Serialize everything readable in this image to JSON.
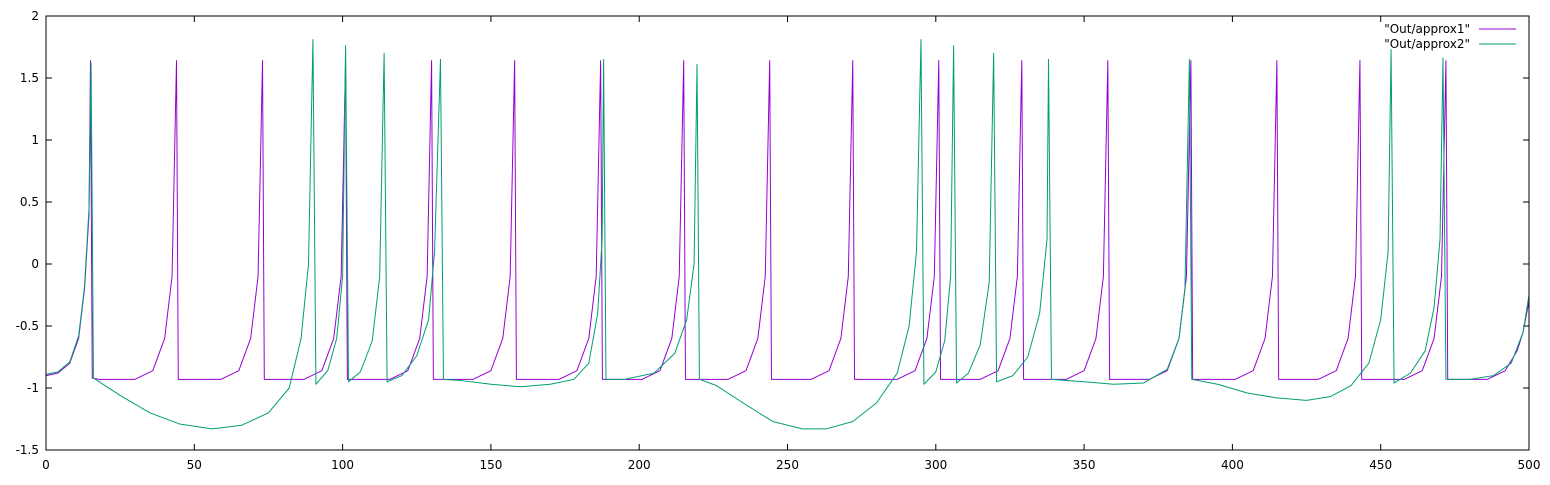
{
  "chart_data": {
    "type": "line",
    "title": "",
    "xlabel": "",
    "ylabel": "",
    "xlim": [
      0,
      500
    ],
    "ylim": [
      -1.5,
      2
    ],
    "grid": false,
    "legend_position": "top-right",
    "x_ticks": [
      "0",
      "50",
      "100",
      "150",
      "200",
      "250",
      "300",
      "350",
      "400",
      "450",
      "500"
    ],
    "y_ticks": [
      "-1.5",
      "-1",
      "-0.5",
      "0",
      "0.5",
      "1",
      "1.5",
      "2"
    ],
    "series": [
      {
        "name": "\"Out/approx1\"",
        "color": "#9400d3",
        "points": [
          [
            0,
            -0.9
          ],
          [
            4,
            -0.88
          ],
          [
            8,
            -0.8
          ],
          [
            11,
            -0.6
          ],
          [
            13,
            -0.2
          ],
          [
            14.5,
            0.4
          ],
          [
            15,
            1.64
          ],
          [
            15.6,
            -0.92
          ],
          [
            18,
            -0.93
          ],
          [
            30,
            -0.93
          ],
          [
            36,
            -0.86
          ],
          [
            40,
            -0.6
          ],
          [
            42.5,
            -0.1
          ],
          [
            44,
            1.64
          ],
          [
            44.6,
            -0.93
          ],
          [
            47,
            -0.93
          ],
          [
            59,
            -0.93
          ],
          [
            65,
            -0.86
          ],
          [
            69,
            -0.6
          ],
          [
            71.5,
            -0.1
          ],
          [
            73,
            1.64
          ],
          [
            73.6,
            -0.93
          ],
          [
            76,
            -0.93
          ],
          [
            87,
            -0.93
          ],
          [
            93,
            -0.86
          ],
          [
            97,
            -0.6
          ],
          [
            99.5,
            -0.1
          ],
          [
            101,
            1.64
          ],
          [
            101.6,
            -0.93
          ],
          [
            104,
            -0.93
          ],
          [
            116,
            -0.93
          ],
          [
            122,
            -0.86
          ],
          [
            126,
            -0.6
          ],
          [
            128.5,
            -0.1
          ],
          [
            130,
            1.64
          ],
          [
            130.6,
            -0.93
          ],
          [
            133,
            -0.93
          ],
          [
            144,
            -0.93
          ],
          [
            150,
            -0.86
          ],
          [
            154,
            -0.6
          ],
          [
            156.5,
            -0.1
          ],
          [
            158,
            1.64
          ],
          [
            158.6,
            -0.93
          ],
          [
            161,
            -0.93
          ],
          [
            173,
            -0.93
          ],
          [
            179,
            -0.86
          ],
          [
            183,
            -0.6
          ],
          [
            185.5,
            -0.1
          ],
          [
            187,
            1.64
          ],
          [
            187.6,
            -0.93
          ],
          [
            190,
            -0.93
          ],
          [
            201,
            -0.93
          ],
          [
            207,
            -0.86
          ],
          [
            211,
            -0.6
          ],
          [
            213.5,
            -0.1
          ],
          [
            215,
            1.64
          ],
          [
            215.6,
            -0.93
          ],
          [
            218,
            -0.93
          ],
          [
            230,
            -0.93
          ],
          [
            236,
            -0.86
          ],
          [
            240,
            -0.6
          ],
          [
            242.5,
            -0.1
          ],
          [
            244,
            1.64
          ],
          [
            244.6,
            -0.93
          ],
          [
            247,
            -0.93
          ],
          [
            258,
            -0.93
          ],
          [
            264,
            -0.86
          ],
          [
            268,
            -0.6
          ],
          [
            270.5,
            -0.1
          ],
          [
            272,
            1.64
          ],
          [
            272.6,
            -0.93
          ],
          [
            275,
            -0.93
          ],
          [
            287,
            -0.93
          ],
          [
            293,
            -0.86
          ],
          [
            297,
            -0.6
          ],
          [
            299.5,
            -0.1
          ],
          [
            301,
            1.64
          ],
          [
            301.6,
            -0.93
          ],
          [
            304,
            -0.93
          ],
          [
            315,
            -0.93
          ],
          [
            321,
            -0.86
          ],
          [
            325,
            -0.6
          ],
          [
            327.5,
            -0.1
          ],
          [
            329,
            1.64
          ],
          [
            329.6,
            -0.93
          ],
          [
            332,
            -0.93
          ],
          [
            344,
            -0.93
          ],
          [
            350,
            -0.86
          ],
          [
            354,
            -0.6
          ],
          [
            356.5,
            -0.1
          ],
          [
            358,
            1.64
          ],
          [
            358.6,
            -0.93
          ],
          [
            361,
            -0.93
          ],
          [
            372,
            -0.93
          ],
          [
            378,
            -0.86
          ],
          [
            382,
            -0.6
          ],
          [
            384.5,
            -0.1
          ],
          [
            386,
            1.64
          ],
          [
            386.6,
            -0.93
          ],
          [
            389,
            -0.93
          ],
          [
            401,
            -0.93
          ],
          [
            407,
            -0.86
          ],
          [
            411,
            -0.6
          ],
          [
            413.5,
            -0.1
          ],
          [
            415,
            1.64
          ],
          [
            415.6,
            -0.93
          ],
          [
            418,
            -0.93
          ],
          [
            429,
            -0.93
          ],
          [
            435,
            -0.86
          ],
          [
            439,
            -0.6
          ],
          [
            441.5,
            -0.1
          ],
          [
            443,
            1.64
          ],
          [
            443.6,
            -0.93
          ],
          [
            446,
            -0.93
          ],
          [
            458,
            -0.93
          ],
          [
            464,
            -0.86
          ],
          [
            468,
            -0.6
          ],
          [
            470.5,
            -0.1
          ],
          [
            472,
            1.64
          ],
          [
            472.6,
            -0.93
          ],
          [
            475,
            -0.93
          ],
          [
            486,
            -0.93
          ],
          [
            492,
            -0.86
          ],
          [
            496,
            -0.7
          ],
          [
            498,
            -0.55
          ],
          [
            500,
            -0.3
          ]
        ]
      },
      {
        "name": "\"Out/approx2\"",
        "color": "#009e73",
        "points": [
          [
            0,
            -0.89
          ],
          [
            4,
            -0.87
          ],
          [
            8,
            -0.79
          ],
          [
            11,
            -0.58
          ],
          [
            13,
            -0.18
          ],
          [
            14.5,
            0.45
          ],
          [
            15.2,
            1.62
          ],
          [
            16,
            -0.92
          ],
          [
            25,
            -1.06
          ],
          [
            35,
            -1.2
          ],
          [
            45,
            -1.29
          ],
          [
            56,
            -1.33
          ],
          [
            66,
            -1.3
          ],
          [
            75,
            -1.2
          ],
          [
            82,
            -1.0
          ],
          [
            86,
            -0.6
          ],
          [
            88.5,
            0.0
          ],
          [
            90,
            1.81
          ],
          [
            91,
            -0.97
          ],
          [
            95,
            -0.86
          ],
          [
            98,
            -0.6
          ],
          [
            100,
            -0.1
          ],
          [
            101,
            1.76
          ],
          [
            102,
            -0.95
          ],
          [
            106,
            -0.87
          ],
          [
            110,
            -0.62
          ],
          [
            112.5,
            -0.1
          ],
          [
            114,
            1.7
          ],
          [
            115,
            -0.95
          ],
          [
            120,
            -0.9
          ],
          [
            125,
            -0.74
          ],
          [
            129,
            -0.45
          ],
          [
            131,
            0.1
          ],
          [
            133,
            1.65
          ],
          [
            134,
            -0.93
          ],
          [
            140,
            -0.94
          ],
          [
            150,
            -0.97
          ],
          [
            160,
            -0.99
          ],
          [
            170,
            -0.97
          ],
          [
            178,
            -0.93
          ],
          [
            183,
            -0.8
          ],
          [
            186,
            -0.4
          ],
          [
            187.5,
            0.2
          ],
          [
            188,
            1.65
          ],
          [
            188.8,
            -0.93
          ],
          [
            195,
            -0.93
          ],
          [
            205,
            -0.88
          ],
          [
            212,
            -0.72
          ],
          [
            216,
            -0.45
          ],
          [
            218.5,
            0.0
          ],
          [
            219.5,
            1.61
          ],
          [
            220.3,
            -0.93
          ],
          [
            226,
            -0.98
          ],
          [
            235,
            -1.12
          ],
          [
            245,
            -1.27
          ],
          [
            255,
            -1.33
          ],
          [
            263,
            -1.33
          ],
          [
            272,
            -1.27
          ],
          [
            280,
            -1.12
          ],
          [
            287,
            -0.88
          ],
          [
            291,
            -0.5
          ],
          [
            293.5,
            0.1
          ],
          [
            295,
            1.81
          ],
          [
            296,
            -0.97
          ],
          [
            300,
            -0.87
          ],
          [
            303,
            -0.62
          ],
          [
            305,
            -0.1
          ],
          [
            306,
            1.76
          ],
          [
            307,
            -0.96
          ],
          [
            311,
            -0.88
          ],
          [
            315,
            -0.65
          ],
          [
            318,
            -0.15
          ],
          [
            319.5,
            1.7
          ],
          [
            320.5,
            -0.95
          ],
          [
            326,
            -0.9
          ],
          [
            331,
            -0.75
          ],
          [
            335,
            -0.4
          ],
          [
            337.5,
            0.2
          ],
          [
            338,
            1.65
          ],
          [
            339,
            -0.93
          ],
          [
            350,
            -0.95
          ],
          [
            360,
            -0.97
          ],
          [
            370,
            -0.96
          ],
          [
            378,
            -0.85
          ],
          [
            382,
            -0.6
          ],
          [
            384,
            -0.2
          ],
          [
            385.5,
            1.65
          ],
          [
            386.3,
            -0.93
          ],
          [
            395,
            -0.97
          ],
          [
            405,
            -1.04
          ],
          [
            415,
            -1.08
          ],
          [
            425,
            -1.1
          ],
          [
            433,
            -1.07
          ],
          [
            440,
            -0.98
          ],
          [
            446,
            -0.8
          ],
          [
            450,
            -0.45
          ],
          [
            452.5,
            0.1
          ],
          [
            453.5,
            1.73
          ],
          [
            454.5,
            -0.96
          ],
          [
            460,
            -0.88
          ],
          [
            465,
            -0.7
          ],
          [
            468,
            -0.35
          ],
          [
            470,
            0.2
          ],
          [
            471,
            1.66
          ],
          [
            472,
            -0.93
          ],
          [
            480,
            -0.93
          ],
          [
            488,
            -0.9
          ],
          [
            494,
            -0.8
          ],
          [
            498,
            -0.55
          ],
          [
            500,
            -0.25
          ]
        ]
      }
    ]
  }
}
